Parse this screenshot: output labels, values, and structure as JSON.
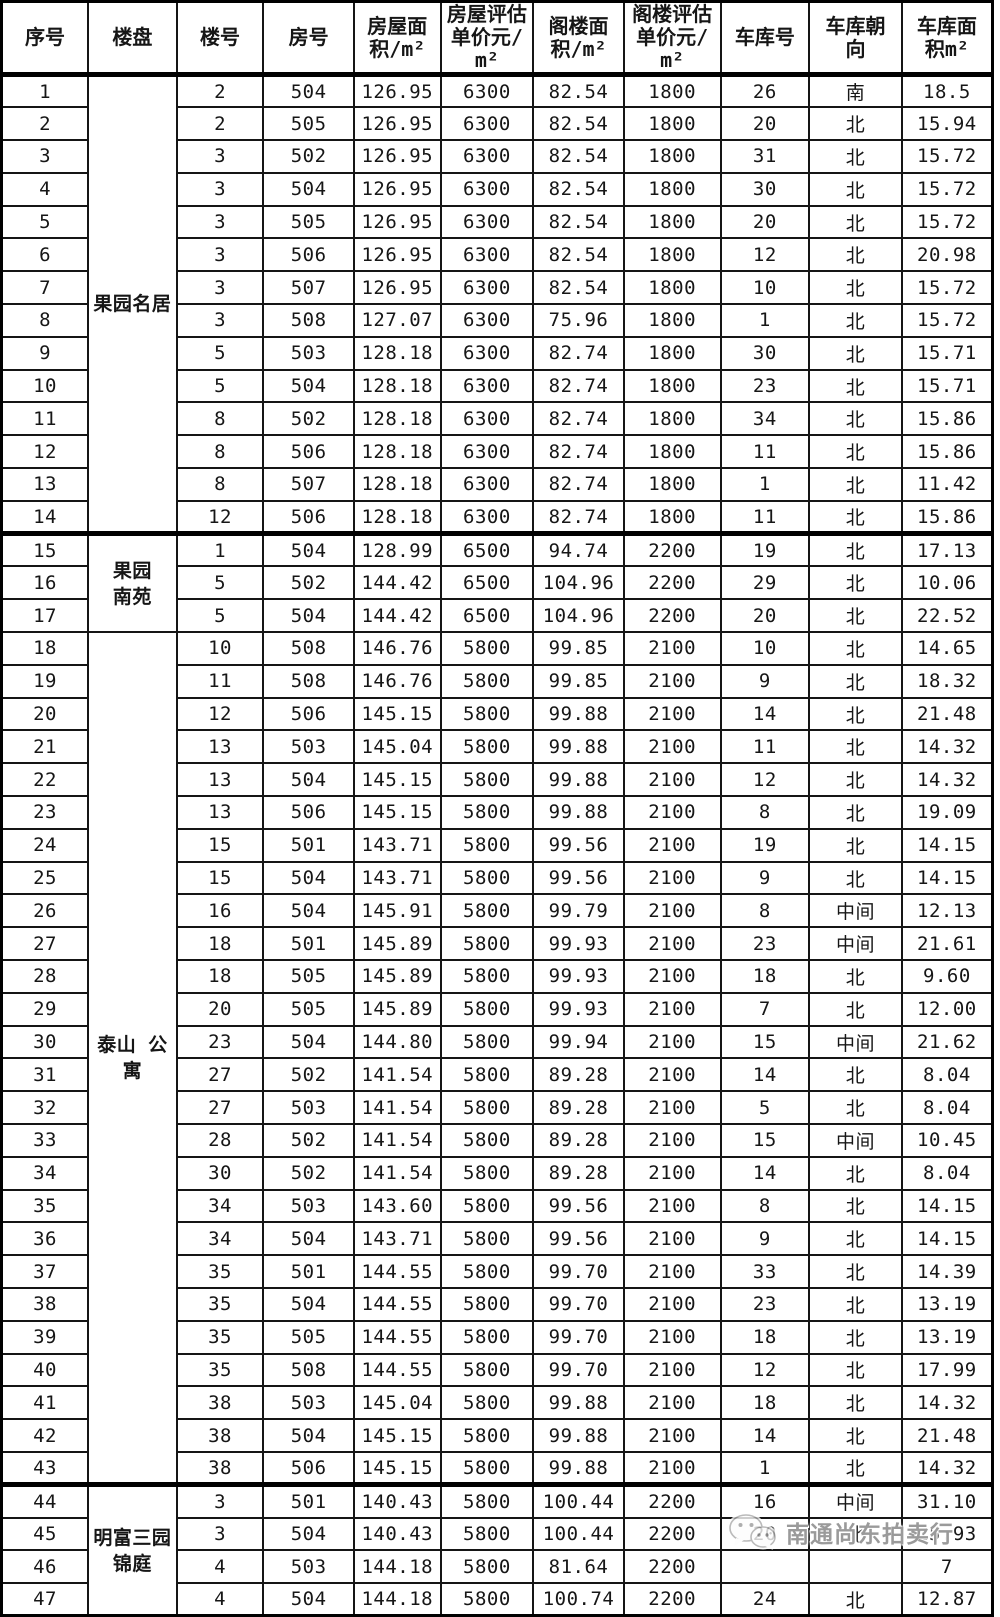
{
  "table": {
    "headers": [
      "序号",
      "楼盘",
      "楼号",
      "房号",
      "房屋面\n积/m²",
      "房屋评估\n单价元/\nm²",
      "阁楼面\n积/m²",
      "阁楼评估\n单价元/\nm²",
      "车库号",
      "车库朝\n向",
      "车库面\n积m²"
    ],
    "row_fields": [
      "serial",
      "building_no",
      "room_no",
      "house_area",
      "house_unit_price",
      "attic_area",
      "attic_unit_price",
      "garage_no",
      "garage_orientation",
      "garage_area"
    ],
    "groups": [
      {
        "name": "果园名居",
        "label": "果园名居",
        "thick_bottom": true,
        "rows": [
          [
            "1",
            "2",
            "504",
            "126.95",
            "6300",
            "82.54",
            "1800",
            "26",
            "南",
            "18.5"
          ],
          [
            "2",
            "2",
            "505",
            "126.95",
            "6300",
            "82.54",
            "1800",
            "20",
            "北",
            "15.94"
          ],
          [
            "3",
            "3",
            "502",
            "126.95",
            "6300",
            "82.54",
            "1800",
            "31",
            "北",
            "15.72"
          ],
          [
            "4",
            "3",
            "504",
            "126.95",
            "6300",
            "82.54",
            "1800",
            "30",
            "北",
            "15.72"
          ],
          [
            "5",
            "3",
            "505",
            "126.95",
            "6300",
            "82.54",
            "1800",
            "20",
            "北",
            "15.72"
          ],
          [
            "6",
            "3",
            "506",
            "126.95",
            "6300",
            "82.54",
            "1800",
            "12",
            "北",
            "20.98"
          ],
          [
            "7",
            "3",
            "507",
            "126.95",
            "6300",
            "82.54",
            "1800",
            "10",
            "北",
            "15.72"
          ],
          [
            "8",
            "3",
            "508",
            "127.07",
            "6300",
            "75.96",
            "1800",
            "1",
            "北",
            "15.72"
          ],
          [
            "9",
            "5",
            "503",
            "128.18",
            "6300",
            "82.74",
            "1800",
            "30",
            "北",
            "15.71"
          ],
          [
            "10",
            "5",
            "504",
            "128.18",
            "6300",
            "82.74",
            "1800",
            "23",
            "北",
            "15.71"
          ],
          [
            "11",
            "8",
            "502",
            "128.18",
            "6300",
            "82.74",
            "1800",
            "34",
            "北",
            "15.86"
          ],
          [
            "12",
            "8",
            "506",
            "128.18",
            "6300",
            "82.74",
            "1800",
            "11",
            "北",
            "15.86"
          ],
          [
            "13",
            "8",
            "507",
            "128.18",
            "6300",
            "82.74",
            "1800",
            "1",
            "北",
            "11.42"
          ],
          [
            "14",
            "12",
            "506",
            "128.18",
            "6300",
            "82.74",
            "1800",
            "11",
            "北",
            "15.86"
          ]
        ]
      },
      {
        "name": "果园南苑",
        "label": "果园\n南苑",
        "thick_bottom": false,
        "rows": [
          [
            "15",
            "1",
            "504",
            "128.99",
            "6500",
            "94.74",
            "2200",
            "19",
            "北",
            "17.13"
          ],
          [
            "16",
            "5",
            "502",
            "144.42",
            "6500",
            "104.96",
            "2200",
            "29",
            "北",
            "10.06"
          ],
          [
            "17",
            "5",
            "504",
            "144.42",
            "6500",
            "104.96",
            "2200",
            "20",
            "北",
            "22.52"
          ]
        ]
      },
      {
        "name": "泰山 公寓",
        "label": "泰山 公\n寓",
        "thick_bottom": true,
        "rows": [
          [
            "18",
            "10",
            "508",
            "146.76",
            "5800",
            "99.85",
            "2100",
            "10",
            "北",
            "14.65"
          ],
          [
            "19",
            "11",
            "508",
            "146.76",
            "5800",
            "99.85",
            "2100",
            "9",
            "北",
            "18.32"
          ],
          [
            "20",
            "12",
            "506",
            "145.15",
            "5800",
            "99.88",
            "2100",
            "14",
            "北",
            "21.48"
          ],
          [
            "21",
            "13",
            "503",
            "145.04",
            "5800",
            "99.88",
            "2100",
            "11",
            "北",
            "14.32"
          ],
          [
            "22",
            "13",
            "504",
            "145.15",
            "5800",
            "99.88",
            "2100",
            "12",
            "北",
            "14.32"
          ],
          [
            "23",
            "13",
            "506",
            "145.15",
            "5800",
            "99.88",
            "2100",
            "8",
            "北",
            "19.09"
          ],
          [
            "24",
            "15",
            "501",
            "143.71",
            "5800",
            "99.56",
            "2100",
            "19",
            "北",
            "14.15"
          ],
          [
            "25",
            "15",
            "504",
            "143.71",
            "5800",
            "99.56",
            "2100",
            "9",
            "北",
            "14.15"
          ],
          [
            "26",
            "16",
            "504",
            "145.91",
            "5800",
            "99.79",
            "2100",
            "8",
            "中间",
            "12.13"
          ],
          [
            "27",
            "18",
            "501",
            "145.89",
            "5800",
            "99.93",
            "2100",
            "23",
            "中间",
            "21.61"
          ],
          [
            "28",
            "18",
            "505",
            "145.89",
            "5800",
            "99.93",
            "2100",
            "18",
            "北",
            "9.60"
          ],
          [
            "29",
            "20",
            "505",
            "145.89",
            "5800",
            "99.93",
            "2100",
            "7",
            "北",
            "12.00"
          ],
          [
            "30",
            "23",
            "504",
            "144.80",
            "5800",
            "99.94",
            "2100",
            "15",
            "中间",
            "21.62"
          ],
          [
            "31",
            "27",
            "502",
            "141.54",
            "5800",
            "89.28",
            "2100",
            "14",
            "北",
            "8.04"
          ],
          [
            "32",
            "27",
            "503",
            "141.54",
            "5800",
            "89.28",
            "2100",
            "5",
            "北",
            "8.04"
          ],
          [
            "33",
            "28",
            "502",
            "141.54",
            "5800",
            "89.28",
            "2100",
            "15",
            "中间",
            "10.45"
          ],
          [
            "34",
            "30",
            "502",
            "141.54",
            "5800",
            "89.28",
            "2100",
            "14",
            "北",
            "8.04"
          ],
          [
            "35",
            "34",
            "503",
            "143.60",
            "5800",
            "99.56",
            "2100",
            "8",
            "北",
            "14.15"
          ],
          [
            "36",
            "34",
            "504",
            "143.71",
            "5800",
            "99.56",
            "2100",
            "9",
            "北",
            "14.15"
          ],
          [
            "37",
            "35",
            "501",
            "144.55",
            "5800",
            "99.70",
            "2100",
            "33",
            "北",
            "14.39"
          ],
          [
            "38",
            "35",
            "504",
            "144.55",
            "5800",
            "99.70",
            "2100",
            "23",
            "北",
            "13.19"
          ],
          [
            "39",
            "35",
            "505",
            "144.55",
            "5800",
            "99.70",
            "2100",
            "18",
            "北",
            "13.19"
          ],
          [
            "40",
            "35",
            "508",
            "144.55",
            "5800",
            "99.70",
            "2100",
            "12",
            "北",
            "17.99"
          ],
          [
            "41",
            "38",
            "503",
            "145.04",
            "5800",
            "99.88",
            "2100",
            "18",
            "北",
            "14.32"
          ],
          [
            "42",
            "38",
            "504",
            "145.15",
            "5800",
            "99.88",
            "2100",
            "14",
            "北",
            "21.48"
          ],
          [
            "43",
            "38",
            "506",
            "145.15",
            "5800",
            "99.88",
            "2100",
            "1",
            "北",
            "14.32"
          ]
        ]
      },
      {
        "name": "明富三园锦庭",
        "label": "明富三园\n锦庭",
        "thick_bottom": false,
        "rows": [
          [
            "44",
            "3",
            "501",
            "140.43",
            "5800",
            "100.44",
            "2200",
            "16",
            "中间",
            "31.10"
          ],
          [
            "45",
            "3",
            "504",
            "140.43",
            "5800",
            "100.44",
            "2200",
            "20",
            "北",
            "15.93"
          ],
          [
            "46",
            "4",
            "503",
            "144.18",
            "5800",
            "81.64",
            "2200",
            "",
            "",
            "7"
          ],
          [
            "47",
            "4",
            "504",
            "144.18",
            "5800",
            "100.74",
            "2200",
            "24",
            "北",
            "12.87"
          ]
        ]
      }
    ]
  },
  "watermark": {
    "text": "南通尚东拍卖行",
    "icon": "wechat-logo-icon"
  }
}
